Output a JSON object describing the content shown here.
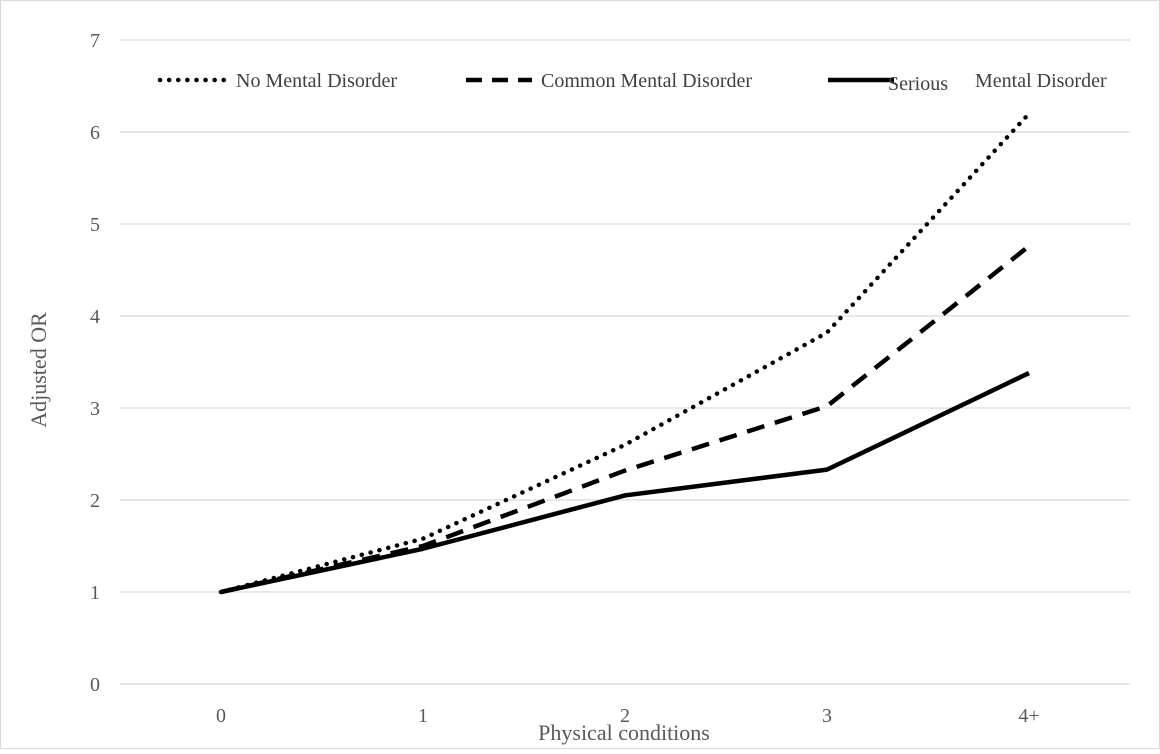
{
  "chart_data": {
    "type": "line",
    "categories": [
      "0",
      "1",
      "2",
      "3",
      "4+"
    ],
    "xlabel": "Physical conditions",
    "ylabel": "Adjusted OR",
    "ylim": [
      0,
      7
    ],
    "yticks": [
      "0",
      "1",
      "2",
      "3",
      "4",
      "5",
      "6",
      "7"
    ],
    "grid": true,
    "legend_position": "top",
    "series": [
      {
        "name": "No Mental Disorder",
        "style": "dotted",
        "color": "#000000",
        "values": [
          1.0,
          1.58,
          2.6,
          3.82,
          6.2
        ]
      },
      {
        "name": "Common Mental Disorder",
        "style": "dashed",
        "color": "#000000",
        "values": [
          1.0,
          1.5,
          2.32,
          3.02,
          4.76
        ]
      },
      {
        "name": "Serious Mental Disorder",
        "legend_parts": [
          "Serious",
          "Mental Disorder"
        ],
        "style": "solid",
        "color": "#000000",
        "values": [
          1.0,
          1.47,
          2.05,
          2.33,
          3.38
        ]
      }
    ]
  }
}
